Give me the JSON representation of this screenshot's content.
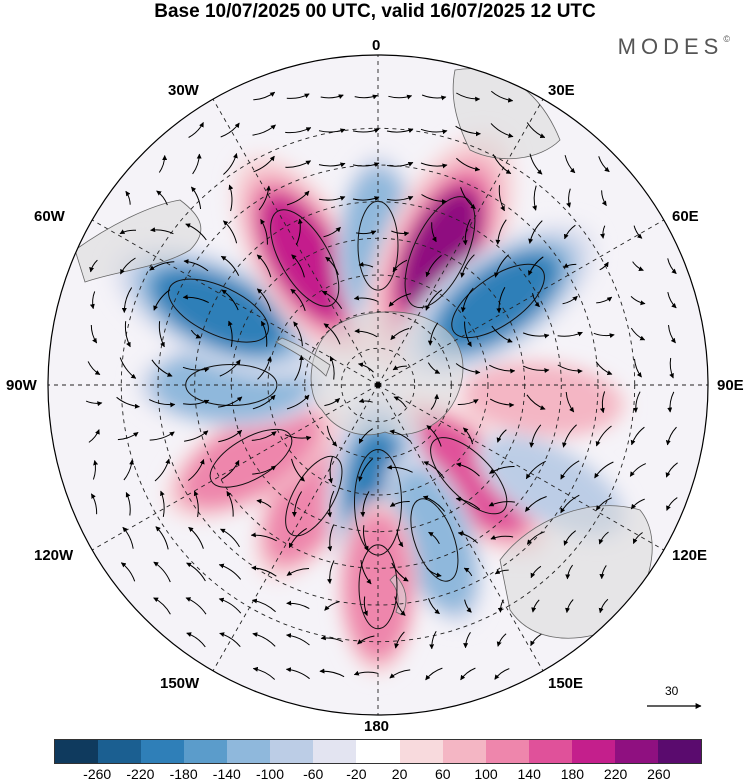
{
  "title": "Base 10/07/2025 00 UTC, valid 16/07/2025 12 UTC",
  "brand": "MODES",
  "brand_mark": "©",
  "longitude_labels": {
    "n0": "0",
    "e30": "30E",
    "e60": "60E",
    "e90": "90E",
    "e120": "120E",
    "e150": "150E",
    "s180": "180",
    "w150": "150W",
    "w120": "120W",
    "w90": "90W",
    "w60": "60W",
    "w30": "30W"
  },
  "reference_vector_label": "30",
  "colorbar": {
    "ticks": [
      "-260",
      "-220",
      "-180",
      "-140",
      "-100",
      "-60",
      "-20",
      "20",
      "60",
      "100",
      "140",
      "180",
      "220",
      "260"
    ],
    "colors": [
      "#0f3a5e",
      "#1b5f91",
      "#2f7fb8",
      "#5b9ccb",
      "#8fb8dc",
      "#bccde6",
      "#e3e4f1",
      "#ffffff",
      "#f8dadd",
      "#f4b6c4",
      "#ee86ac",
      "#e0519a",
      "#c41f8c",
      "#8f1080",
      "#5a0b6e"
    ]
  },
  "anomaly_centers": [
    {
      "lon": -150,
      "lat": -55,
      "value": 120
    },
    {
      "lon": -120,
      "lat": -50,
      "value": 130
    },
    {
      "lon": -90,
      "lat": -50,
      "value": -130
    },
    {
      "lon": -65,
      "lat": -42,
      "value": -200
    },
    {
      "lon": -30,
      "lat": -50,
      "value": 200
    },
    {
      "lon": 0,
      "lat": -52,
      "value": -120
    },
    {
      "lon": 25,
      "lat": -50,
      "value": 250
    },
    {
      "lon": 55,
      "lat": -50,
      "value": -200
    },
    {
      "lon": 95,
      "lat": -45,
      "value": 90
    },
    {
      "lon": 135,
      "lat": -55,
      "value": 160
    },
    {
      "lon": 180,
      "lat": -58,
      "value": -190
    },
    {
      "lon": 160,
      "lat": -45,
      "value": -110
    },
    {
      "lon": 180,
      "lat": -35,
      "value": 100
    },
    {
      "lon": 120,
      "lat": -35,
      "value": -90
    }
  ]
}
